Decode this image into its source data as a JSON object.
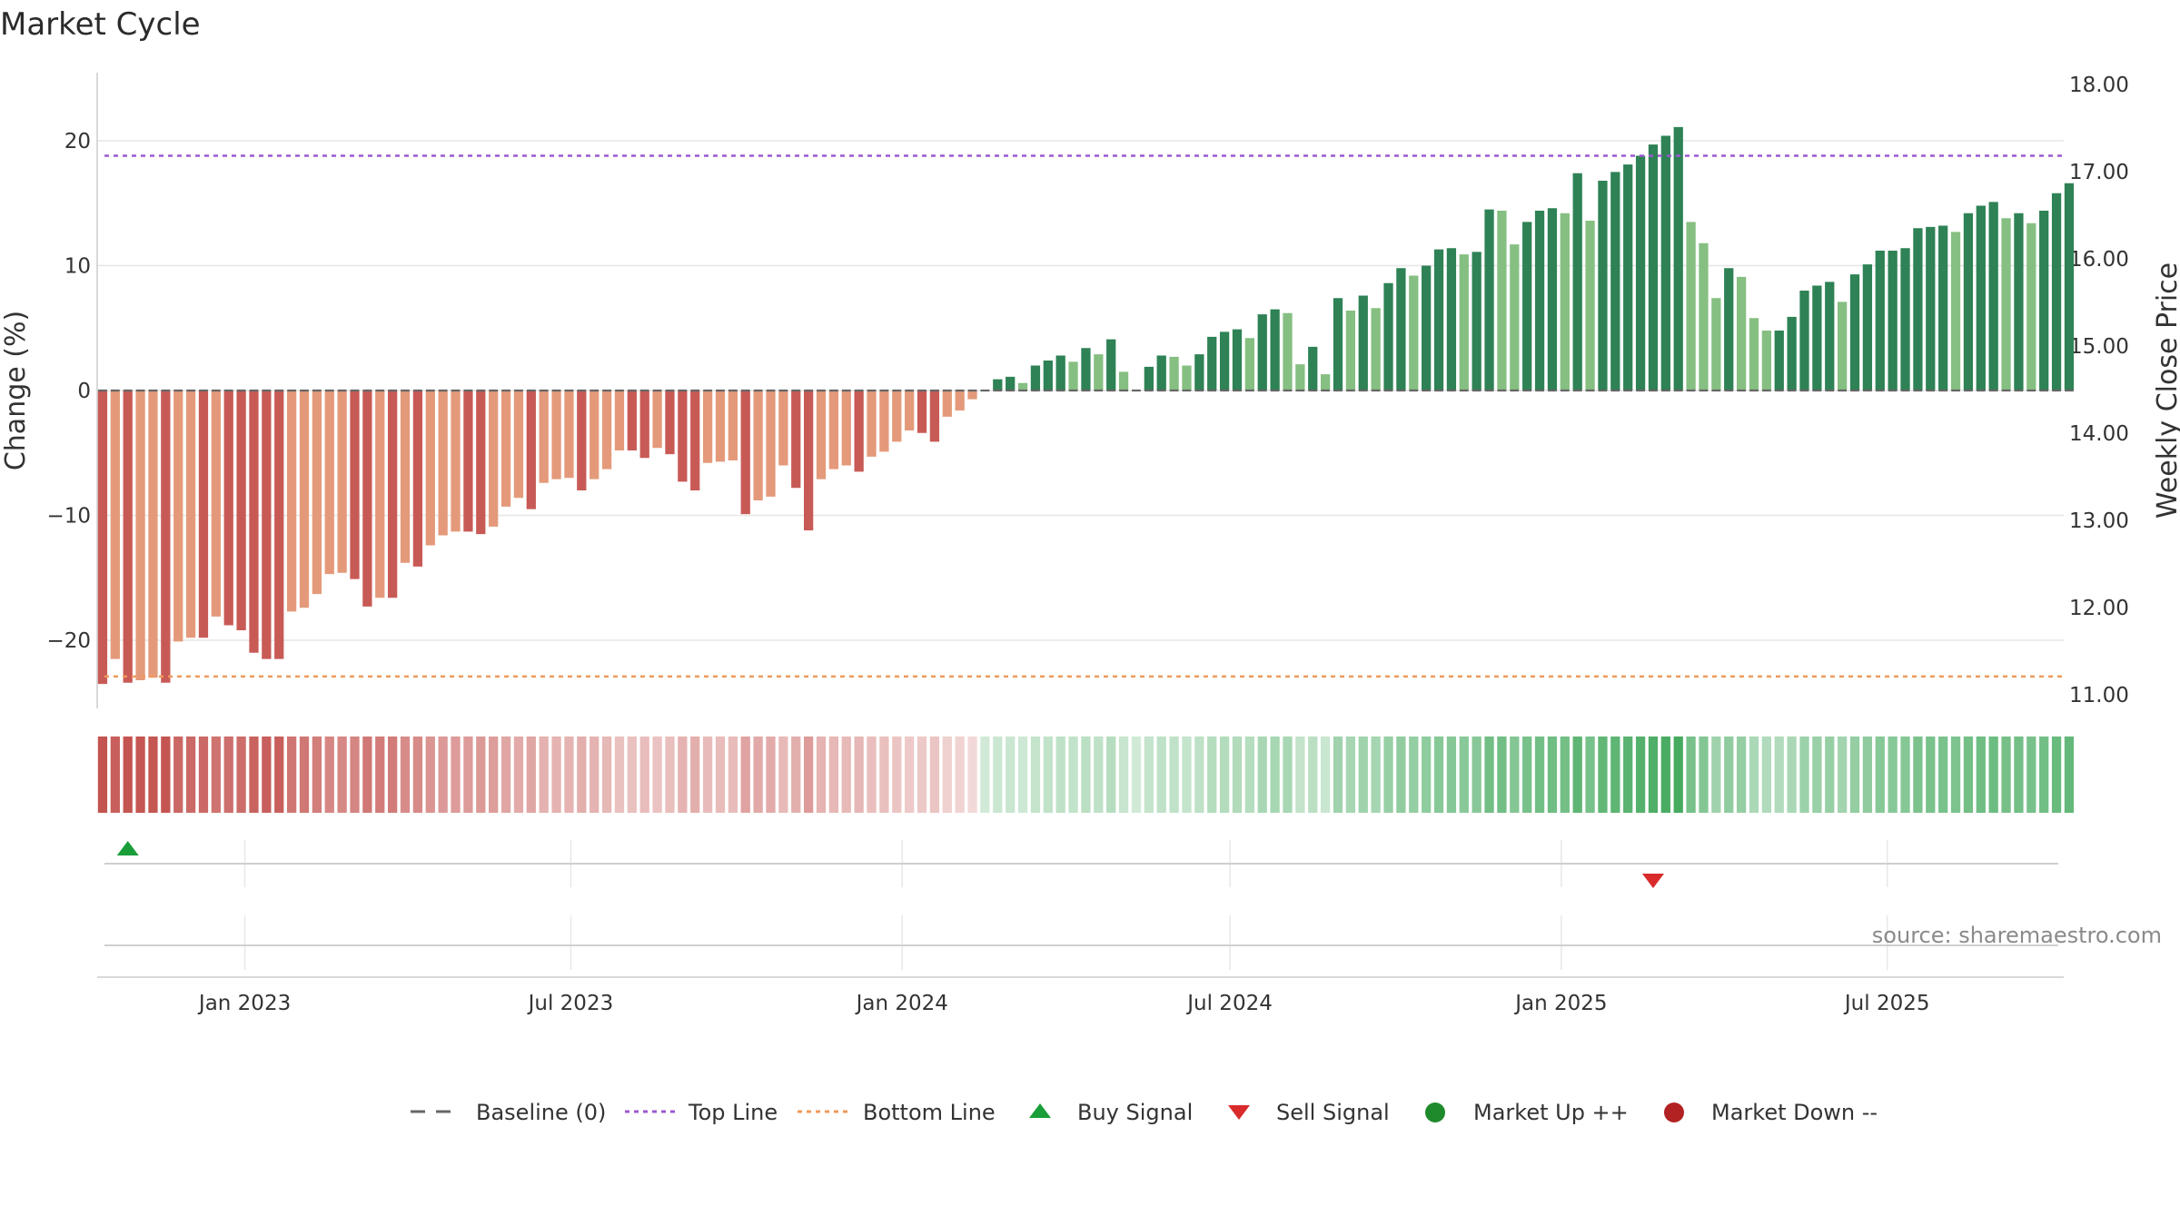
{
  "chart_data": {
    "type": "bar",
    "title": "Market Cycle",
    "ylabel": "Change (%)",
    "y2label": "Weekly Close Price",
    "ylim": [
      -25.5,
      25.5
    ],
    "y2lim": [
      10.86,
      18.1
    ],
    "yticks": [
      20,
      10,
      0,
      -10,
      -20
    ],
    "ytick_labels": [
      "20",
      "10",
      "0",
      "−10",
      "−20"
    ],
    "y2ticks": [
      "18.00",
      "17.00",
      "16.00",
      "15.00",
      "14.00",
      "13.00",
      "12.00",
      "11.00"
    ],
    "top_line": 18.8,
    "bottom_line": -22.9,
    "grid": true,
    "legend_position": "bottom",
    "xlim": [
      "2022-10-11",
      "2025-10-07"
    ],
    "first_week": "2022-10-14",
    "week_interval_days": 7,
    "x_ticks": [
      {
        "label": "Jan 2023",
        "date": "2023-01-01"
      },
      {
        "label": "Jul 2023",
        "date": "2023-07-01"
      },
      {
        "label": "Jan 2024",
        "date": "2024-01-01"
      },
      {
        "label": "Jul 2024",
        "date": "2024-07-01"
      },
      {
        "label": "Jan 2025",
        "date": "2025-01-01"
      },
      {
        "label": "Jul 2025",
        "date": "2025-07-01"
      }
    ],
    "values": [
      -23.5,
      -21.5,
      -23.4,
      -23.2,
      -23,
      -23.4,
      -20.1,
      -19.8,
      -19.8,
      -18.1,
      -18.8,
      -19.2,
      -21,
      -21.5,
      -21.5,
      -17.7,
      -17.4,
      -16.3,
      -14.7,
      -14.6,
      -15.1,
      -17.3,
      -16.6,
      -16.6,
      -13.8,
      -14.1,
      -12.4,
      -11.6,
      -11.3,
      -11.3,
      -11.5,
      -10.9,
      -9.3,
      -8.6,
      -9.5,
      -7.4,
      -7.1,
      -7,
      -8,
      -7.1,
      -6.3,
      -4.8,
      -4.8,
      -5.4,
      -4.6,
      -5.1,
      -7.3,
      -8,
      -5.8,
      -5.7,
      -5.6,
      -9.9,
      -8.8,
      -8.5,
      -6,
      -7.8,
      -11.2,
      -7.1,
      -6.3,
      -6,
      -6.5,
      -5.3,
      -4.9,
      -4.1,
      -3.2,
      -3.4,
      -4.1,
      -2.1,
      -1.6,
      -0.7,
      0,
      0.9,
      1.1,
      0.6,
      2,
      2.4,
      2.8,
      2.3,
      3.4,
      2.9,
      4.1,
      1.5,
      0,
      1.9,
      2.8,
      2.7,
      2,
      2.9,
      4.3,
      4.7,
      4.9,
      4.2,
      6.1,
      6.5,
      6.2,
      2.1,
      3.5,
      1.3,
      7.4,
      6.4,
      7.6,
      6.6,
      8.6,
      9.8,
      9.2,
      10,
      11.3,
      11.4,
      10.9,
      11.1,
      14.5,
      14.4,
      11.7,
      13.5,
      14.4,
      14.6,
      14.2,
      17.4,
      13.6,
      16.8,
      17.5,
      18.1,
      18.8,
      19.7,
      20.4,
      21.1,
      13.5,
      11.8,
      7.4,
      9.8,
      9.1,
      5.8,
      4.8,
      4.8,
      5.9,
      8,
      8.4,
      8.7,
      7.1,
      9.3,
      10.1,
      11.2,
      11.2,
      11.4,
      13,
      13.1,
      13.2,
      12.7,
      14.2,
      14.8,
      15.1,
      13.8,
      14.2,
      13.4,
      14.4,
      15.8,
      16.6
    ],
    "buy_signals": [
      2
    ],
    "sell_signals": [
      123
    ]
  },
  "legend": {
    "baseline": "Baseline (0)",
    "top_line": "Top Line",
    "bottom_line": "Bottom Line",
    "buy_signal": "Buy Signal",
    "sell_signal": "Sell Signal",
    "market_up": "Market Up ++",
    "market_down": "Market Down --"
  },
  "source": "source: sharemaestro.com",
  "colors": {
    "down_strong": "#c85a56",
    "down_light": "#e49a7a",
    "up_strong": "#2e8255",
    "up_light": "#86bf82",
    "top_line": "#9b59d0",
    "bottom_line": "#ef9a5c",
    "buy": "#1a9e3a",
    "sell": "#d92b2b",
    "market_up": "#1f8a2c",
    "market_down": "#b22222",
    "baseline": "#666666"
  }
}
